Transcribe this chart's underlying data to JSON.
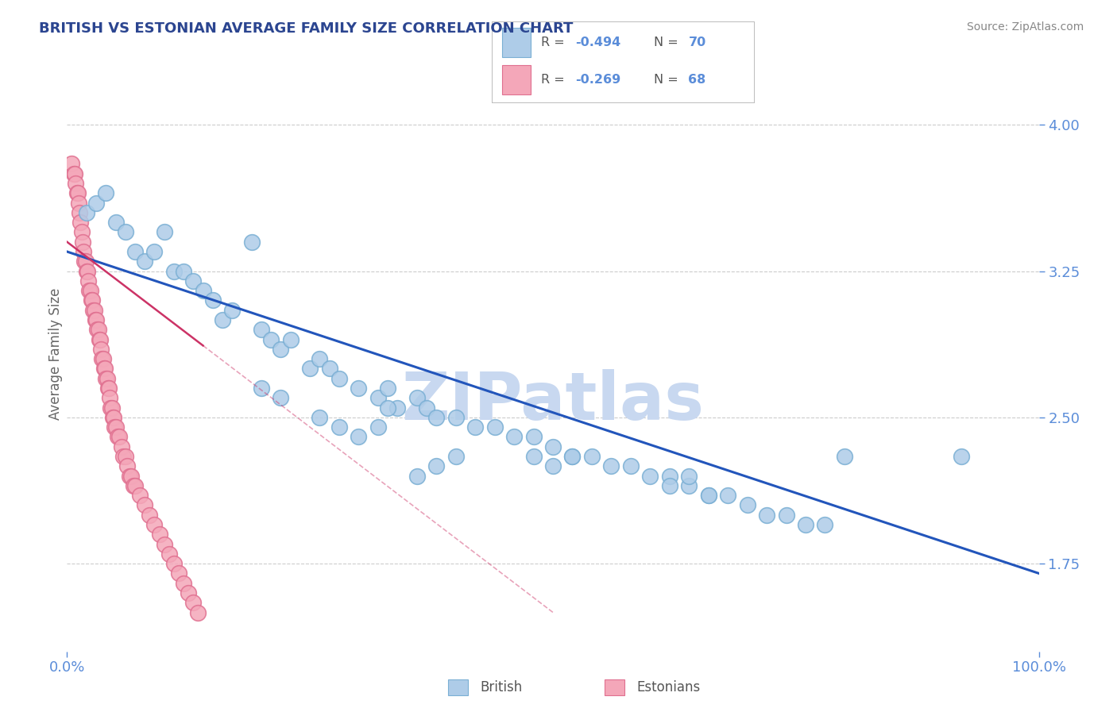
{
  "title": "BRITISH VS ESTONIAN AVERAGE FAMILY SIZE CORRELATION CHART",
  "source_text": "Source: ZipAtlas.com",
  "ylabel": "Average Family Size",
  "xmin": 0.0,
  "xmax": 1.0,
  "ymin": 1.3,
  "ymax": 4.35,
  "yticks": [
    1.75,
    2.5,
    3.25,
    4.0
  ],
  "title_color": "#2B4590",
  "title_fontsize": 13,
  "axis_color": "#5B8DD9",
  "legend_r1": "R = -0.494",
  "legend_n1": "N = 70",
  "legend_r2": "R = -0.269",
  "legend_n2": "N = 68",
  "british_color": "#AECCE8",
  "estonian_color": "#F4A7B9",
  "british_edge": "#7AAFD4",
  "estonian_edge": "#E07090",
  "trendline_british_color": "#2255BB",
  "trendline_estonian_color": "#CC3366",
  "watermark_color": "#C8D8F0",
  "british_x": [
    0.02,
    0.03,
    0.04,
    0.05,
    0.06,
    0.07,
    0.08,
    0.09,
    0.1,
    0.11,
    0.12,
    0.13,
    0.14,
    0.15,
    0.16,
    0.17,
    0.19,
    0.2,
    0.21,
    0.22,
    0.23,
    0.25,
    0.26,
    0.27,
    0.28,
    0.3,
    0.32,
    0.33,
    0.34,
    0.36,
    0.37,
    0.38,
    0.4,
    0.42,
    0.44,
    0.46,
    0.48,
    0.5,
    0.52,
    0.54,
    0.56,
    0.58,
    0.6,
    0.62,
    0.64,
    0.66,
    0.68,
    0.7,
    0.72,
    0.74,
    0.76,
    0.78,
    0.32,
    0.33,
    0.48,
    0.5,
    0.52,
    0.62,
    0.64,
    0.66,
    0.36,
    0.38,
    0.4,
    0.26,
    0.28,
    0.3,
    0.2,
    0.22,
    0.8,
    0.92
  ],
  "british_y": [
    3.55,
    3.6,
    3.65,
    3.5,
    3.45,
    3.35,
    3.3,
    3.35,
    3.45,
    3.25,
    3.25,
    3.2,
    3.15,
    3.1,
    3.0,
    3.05,
    3.4,
    2.95,
    2.9,
    2.85,
    2.9,
    2.75,
    2.8,
    2.75,
    2.7,
    2.65,
    2.6,
    2.65,
    2.55,
    2.6,
    2.55,
    2.5,
    2.5,
    2.45,
    2.45,
    2.4,
    2.4,
    2.35,
    2.3,
    2.3,
    2.25,
    2.25,
    2.2,
    2.2,
    2.15,
    2.1,
    2.1,
    2.05,
    2.0,
    2.0,
    1.95,
    1.95,
    2.45,
    2.55,
    2.3,
    2.25,
    2.3,
    2.15,
    2.2,
    2.1,
    2.2,
    2.25,
    2.3,
    2.5,
    2.45,
    2.4,
    2.65,
    2.6,
    2.3,
    2.3
  ],
  "estonian_x": [
    0.005,
    0.007,
    0.008,
    0.009,
    0.01,
    0.011,
    0.012,
    0.013,
    0.014,
    0.015,
    0.016,
    0.017,
    0.018,
    0.019,
    0.02,
    0.021,
    0.022,
    0.023,
    0.024,
    0.025,
    0.026,
    0.027,
    0.028,
    0.029,
    0.03,
    0.031,
    0.032,
    0.033,
    0.034,
    0.035,
    0.036,
    0.037,
    0.038,
    0.039,
    0.04,
    0.041,
    0.042,
    0.043,
    0.044,
    0.045,
    0.046,
    0.047,
    0.048,
    0.049,
    0.05,
    0.052,
    0.054,
    0.056,
    0.058,
    0.06,
    0.062,
    0.064,
    0.066,
    0.068,
    0.07,
    0.075,
    0.08,
    0.085,
    0.09,
    0.095,
    0.1,
    0.105,
    0.11,
    0.115,
    0.12,
    0.125,
    0.13,
    0.135
  ],
  "estonian_y": [
    3.8,
    3.75,
    3.75,
    3.7,
    3.65,
    3.65,
    3.6,
    3.55,
    3.5,
    3.45,
    3.4,
    3.35,
    3.3,
    3.3,
    3.25,
    3.25,
    3.2,
    3.15,
    3.15,
    3.1,
    3.1,
    3.05,
    3.05,
    3.0,
    3.0,
    2.95,
    2.95,
    2.9,
    2.9,
    2.85,
    2.8,
    2.8,
    2.75,
    2.75,
    2.7,
    2.7,
    2.65,
    2.65,
    2.6,
    2.55,
    2.55,
    2.5,
    2.5,
    2.45,
    2.45,
    2.4,
    2.4,
    2.35,
    2.3,
    2.3,
    2.25,
    2.2,
    2.2,
    2.15,
    2.15,
    2.1,
    2.05,
    2.0,
    1.95,
    1.9,
    1.85,
    1.8,
    1.75,
    1.7,
    1.65,
    1.6,
    1.55,
    1.5
  ],
  "estonian_trendline_x0": 0.0,
  "estonian_trendline_x1": 0.5,
  "estonian_trendline_y0": 3.4,
  "estonian_trendline_y1": 1.5,
  "british_trendline_x0": 0.0,
  "british_trendline_x1": 1.0,
  "british_trendline_y0": 3.35,
  "british_trendline_y1": 1.7
}
